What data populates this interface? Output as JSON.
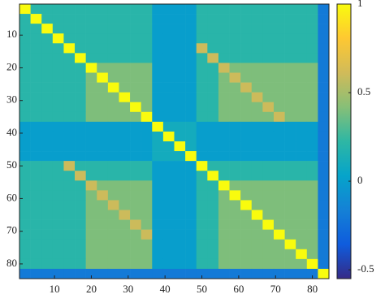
{
  "chart_data": {
    "type": "heatmap",
    "x": [
      2,
      5,
      8,
      11,
      14,
      17,
      20,
      23,
      26,
      29,
      32,
      35,
      38,
      41,
      44,
      47,
      50,
      53,
      56,
      59,
      62,
      65,
      68,
      71,
      74,
      77,
      80,
      83
    ],
    "y": [
      2,
      5,
      8,
      11,
      14,
      17,
      20,
      23,
      26,
      29,
      32,
      35,
      38,
      41,
      44,
      47,
      50,
      53,
      56,
      59,
      62,
      65,
      68,
      71,
      74,
      77,
      80,
      83
    ],
    "xlim": [
      0.5,
      84.5
    ],
    "ylim": [
      0.5,
      84.5
    ],
    "xticks": [
      10,
      20,
      30,
      40,
      50,
      60,
      70,
      80
    ],
    "yticks": [
      10,
      20,
      30,
      40,
      50,
      60,
      70,
      80
    ],
    "clim": [
      -0.55,
      1
    ],
    "cticks": [
      -0.5,
      0,
      0.5,
      1
    ],
    "colormap": [
      "#352a87",
      "#0f5cdd",
      "#1481d6",
      "#06a4ca",
      "#2eb7a4",
      "#87bf77",
      "#d1bb59",
      "#fec832",
      "#f9fb0e"
    ],
    "z": [
      [
        1,
        0.2,
        0.2,
        0.2,
        0.2,
        0.2,
        0.2,
        0.2,
        0.2,
        0.2,
        0.2,
        0.2,
        0,
        0,
        0,
        0,
        0.2,
        0.2,
        0.2,
        0.2,
        0.2,
        0.2,
        0.2,
        0.2,
        0.2,
        0.2,
        0.2,
        -0.2
      ],
      [
        0.2,
        1,
        0.2,
        0.2,
        0.2,
        0.2,
        0.2,
        0.2,
        0.2,
        0.2,
        0.2,
        0.2,
        0,
        0,
        0,
        0,
        0.2,
        0.2,
        0.2,
        0.2,
        0.2,
        0.2,
        0.2,
        0.2,
        0.2,
        0.2,
        0.2,
        -0.2
      ],
      [
        0.2,
        0.2,
        1,
        0.2,
        0.2,
        0.2,
        0.2,
        0.2,
        0.2,
        0.2,
        0.2,
        0.2,
        0,
        0,
        0,
        0,
        0.2,
        0.2,
        0.2,
        0.2,
        0.2,
        0.2,
        0.2,
        0.2,
        0.2,
        0.2,
        0.2,
        -0.2
      ],
      [
        0.2,
        0.2,
        0.2,
        1,
        0.2,
        0.2,
        0.2,
        0.2,
        0.2,
        0.2,
        0.2,
        0.2,
        0,
        0,
        0,
        0,
        0.2,
        0.2,
        0.2,
        0.2,
        0.2,
        0.2,
        0.2,
        0.2,
        0.2,
        0.2,
        0.2,
        -0.2
      ],
      [
        0.2,
        0.2,
        0.2,
        0.2,
        1,
        0.2,
        0.2,
        0.2,
        0.2,
        0.2,
        0.2,
        0.2,
        0,
        0,
        0,
        0,
        0.6,
        0.2,
        0.2,
        0.2,
        0.2,
        0.2,
        0.2,
        0.2,
        0.2,
        0.2,
        0.2,
        -0.2
      ],
      [
        0.2,
        0.2,
        0.2,
        0.2,
        0.2,
        1,
        0.2,
        0.2,
        0.2,
        0.2,
        0.2,
        0.2,
        0,
        0,
        0,
        0,
        0.2,
        0.6,
        0.2,
        0.2,
        0.2,
        0.2,
        0.2,
        0.2,
        0.2,
        0.2,
        0.2,
        -0.2
      ],
      [
        0.2,
        0.2,
        0.2,
        0.2,
        0.2,
        0.2,
        1,
        0.4,
        0.4,
        0.4,
        0.4,
        0.4,
        0,
        0,
        0,
        0,
        0.2,
        0.2,
        0.6,
        0.4,
        0.4,
        0.4,
        0.4,
        0.4,
        0.4,
        0.4,
        0.4,
        -0.2
      ],
      [
        0.2,
        0.2,
        0.2,
        0.2,
        0.2,
        0.2,
        0.4,
        1,
        0.4,
        0.4,
        0.4,
        0.4,
        0,
        0,
        0,
        0,
        0.2,
        0.2,
        0.4,
        0.6,
        0.4,
        0.4,
        0.4,
        0.4,
        0.4,
        0.4,
        0.4,
        -0.2
      ],
      [
        0.2,
        0.2,
        0.2,
        0.2,
        0.2,
        0.2,
        0.4,
        0.4,
        1,
        0.4,
        0.4,
        0.4,
        0,
        0,
        0,
        0,
        0.2,
        0.2,
        0.4,
        0.4,
        0.6,
        0.4,
        0.4,
        0.4,
        0.4,
        0.4,
        0.4,
        -0.2
      ],
      [
        0.2,
        0.2,
        0.2,
        0.2,
        0.2,
        0.2,
        0.4,
        0.4,
        0.4,
        1,
        0.4,
        0.4,
        0,
        0,
        0,
        0,
        0.2,
        0.2,
        0.4,
        0.4,
        0.4,
        0.6,
        0.4,
        0.4,
        0.4,
        0.4,
        0.4,
        -0.2
      ],
      [
        0.2,
        0.2,
        0.2,
        0.2,
        0.2,
        0.2,
        0.4,
        0.4,
        0.4,
        0.4,
        1,
        0.4,
        0,
        0,
        0,
        0,
        0.2,
        0.2,
        0.4,
        0.4,
        0.4,
        0.4,
        0.6,
        0.4,
        0.4,
        0.4,
        0.4,
        -0.2
      ],
      [
        0.2,
        0.2,
        0.2,
        0.2,
        0.2,
        0.2,
        0.4,
        0.4,
        0.4,
        0.4,
        0.4,
        1,
        0,
        0,
        0,
        0,
        0.2,
        0.2,
        0.4,
        0.4,
        0.4,
        0.4,
        0.4,
        0.6,
        0.4,
        0.4,
        0.4,
        -0.2
      ],
      [
        0,
        0,
        0,
        0,
        0,
        0,
        0,
        0,
        0,
        0,
        0,
        0,
        1,
        0.1,
        0.1,
        0.1,
        0,
        0,
        0,
        0,
        0,
        0,
        0,
        0,
        0,
        0,
        0,
        -0.2
      ],
      [
        0,
        0,
        0,
        0,
        0,
        0,
        0,
        0,
        0,
        0,
        0,
        0,
        0.1,
        1,
        0.1,
        0.1,
        0,
        0,
        0,
        0,
        0,
        0,
        0,
        0,
        0,
        0,
        0,
        -0.2
      ],
      [
        0,
        0,
        0,
        0,
        0,
        0,
        0,
        0,
        0,
        0,
        0,
        0,
        0.1,
        0.1,
        1,
        0.1,
        0,
        0,
        0,
        0,
        0,
        0,
        0,
        0,
        0,
        0,
        0,
        -0.2
      ],
      [
        0,
        0,
        0,
        0,
        0,
        0,
        0,
        0,
        0,
        0,
        0,
        0,
        0.1,
        0.1,
        0.1,
        1,
        0,
        0,
        0,
        0,
        0,
        0,
        0,
        0,
        0,
        0,
        0,
        -0.2
      ],
      [
        0.2,
        0.2,
        0.2,
        0.2,
        0.6,
        0.2,
        0.2,
        0.2,
        0.2,
        0.2,
        0.2,
        0.2,
        0,
        0,
        0,
        0,
        1,
        0.2,
        0.2,
        0.2,
        0.2,
        0.2,
        0.2,
        0.2,
        0.2,
        0.2,
        0.2,
        -0.2
      ],
      [
        0.2,
        0.2,
        0.2,
        0.2,
        0.2,
        0.6,
        0.2,
        0.2,
        0.2,
        0.2,
        0.2,
        0.2,
        0,
        0,
        0,
        0,
        0.2,
        1,
        0.2,
        0.2,
        0.2,
        0.2,
        0.2,
        0.2,
        0.2,
        0.2,
        0.2,
        -0.2
      ],
      [
        0.2,
        0.2,
        0.2,
        0.2,
        0.2,
        0.2,
        0.6,
        0.4,
        0.4,
        0.4,
        0.4,
        0.4,
        0,
        0,
        0,
        0,
        0.2,
        0.2,
        1,
        0.4,
        0.4,
        0.4,
        0.4,
        0.4,
        0.4,
        0.4,
        0.4,
        -0.2
      ],
      [
        0.2,
        0.2,
        0.2,
        0.2,
        0.2,
        0.2,
        0.4,
        0.6,
        0.4,
        0.4,
        0.4,
        0.4,
        0,
        0,
        0,
        0,
        0.2,
        0.2,
        0.4,
        1,
        0.4,
        0.4,
        0.4,
        0.4,
        0.4,
        0.4,
        0.4,
        -0.2
      ],
      [
        0.2,
        0.2,
        0.2,
        0.2,
        0.2,
        0.2,
        0.4,
        0.4,
        0.6,
        0.4,
        0.4,
        0.4,
        0,
        0,
        0,
        0,
        0.2,
        0.2,
        0.4,
        0.4,
        1,
        0.4,
        0.4,
        0.4,
        0.4,
        0.4,
        0.4,
        -0.2
      ],
      [
        0.2,
        0.2,
        0.2,
        0.2,
        0.2,
        0.2,
        0.4,
        0.4,
        0.4,
        0.6,
        0.4,
        0.4,
        0,
        0,
        0,
        0,
        0.2,
        0.2,
        0.4,
        0.4,
        0.4,
        1,
        0.4,
        0.4,
        0.4,
        0.4,
        0.4,
        -0.2
      ],
      [
        0.2,
        0.2,
        0.2,
        0.2,
        0.2,
        0.2,
        0.4,
        0.4,
        0.4,
        0.4,
        0.6,
        0.4,
        0,
        0,
        0,
        0,
        0.2,
        0.2,
        0.4,
        0.4,
        0.4,
        0.4,
        1,
        0.4,
        0.4,
        0.4,
        0.4,
        -0.2
      ],
      [
        0.2,
        0.2,
        0.2,
        0.2,
        0.2,
        0.2,
        0.4,
        0.4,
        0.4,
        0.4,
        0.4,
        0.6,
        0,
        0,
        0,
        0,
        0.2,
        0.2,
        0.4,
        0.4,
        0.4,
        0.4,
        0.4,
        1,
        0.4,
        0.4,
        0.4,
        -0.2
      ],
      [
        0.2,
        0.2,
        0.2,
        0.2,
        0.2,
        0.2,
        0.4,
        0.4,
        0.4,
        0.4,
        0.4,
        0.4,
        0,
        0,
        0,
        0,
        0.2,
        0.2,
        0.4,
        0.4,
        0.4,
        0.4,
        0.4,
        0.4,
        1,
        0.4,
        0.4,
        -0.2
      ],
      [
        0.2,
        0.2,
        0.2,
        0.2,
        0.2,
        0.2,
        0.4,
        0.4,
        0.4,
        0.4,
        0.4,
        0.4,
        0,
        0,
        0,
        0,
        0.2,
        0.2,
        0.4,
        0.4,
        0.4,
        0.4,
        0.4,
        0.4,
        0.4,
        1,
        0.4,
        -0.2
      ],
      [
        0.2,
        0.2,
        0.2,
        0.2,
        0.2,
        0.2,
        0.4,
        0.4,
        0.4,
        0.4,
        0.4,
        0.4,
        0,
        0,
        0,
        0,
        0.2,
        0.2,
        0.4,
        0.4,
        0.4,
        0.4,
        0.4,
        0.4,
        0.4,
        0.4,
        1,
        -0.2
      ],
      [
        -0.2,
        -0.2,
        -0.2,
        -0.2,
        -0.2,
        -0.2,
        -0.2,
        -0.2,
        -0.2,
        -0.2,
        -0.2,
        -0.2,
        -0.2,
        -0.2,
        -0.2,
        -0.2,
        -0.2,
        -0.2,
        -0.2,
        -0.2,
        -0.2,
        -0.2,
        -0.2,
        -0.2,
        -0.2,
        -0.2,
        -0.2,
        1
      ]
    ]
  }
}
